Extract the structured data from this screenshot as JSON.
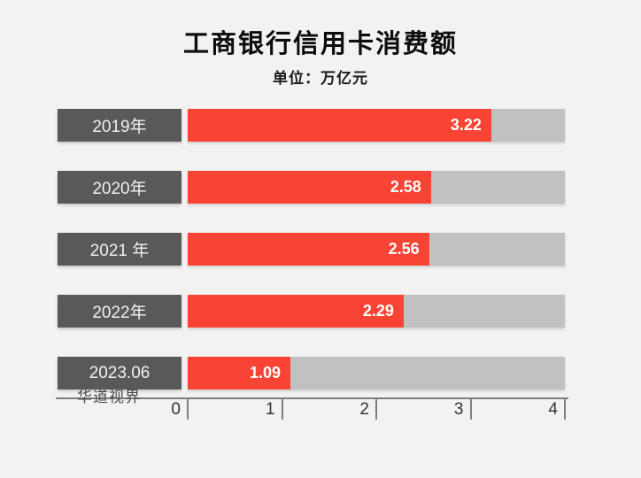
{
  "title": "工商银行信用卡消费额",
  "subtitle": "单位：万亿元",
  "watermark": "华道视界",
  "colors": {
    "background": "#f2f2f2",
    "bar_fill": "#f94334",
    "bar_track": "#c1c1c1",
    "label_box": "#595959",
    "axis": "#7f7f7f"
  },
  "chart_data": {
    "type": "bar",
    "orientation": "horizontal",
    "title": "工商银行信用卡消费额",
    "unit_note": "单位：万亿元",
    "categories": [
      "2019年",
      "2020年",
      "2021 年",
      "2022年",
      "2023.06"
    ],
    "values": [
      3.22,
      2.58,
      2.56,
      2.29,
      1.09
    ],
    "value_labels": [
      "3.22",
      "2.58",
      "2.56",
      "2.29",
      "1.09"
    ],
    "xlabel": "",
    "ylabel": "",
    "xlim": [
      0,
      4
    ],
    "x_ticks": [
      "0",
      "1",
      "2",
      "3",
      "4"
    ],
    "grid": false,
    "legend": false
  }
}
